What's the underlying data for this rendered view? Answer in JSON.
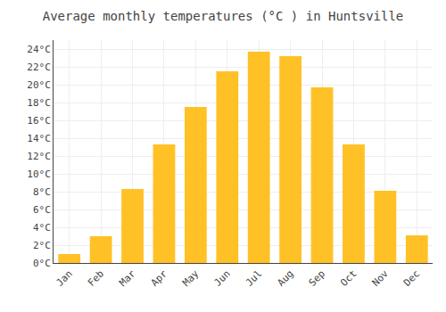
{
  "chart_data": {
    "type": "bar",
    "title": "Average monthly temperatures (°C ) in Huntsville",
    "categories": [
      "Jan",
      "Feb",
      "Mar",
      "Apr",
      "May",
      "Jun",
      "Jul",
      "Aug",
      "Sep",
      "Oct",
      "Nov",
      "Dec"
    ],
    "values": [
      1,
      3,
      8.3,
      13.3,
      17.5,
      21.5,
      23.7,
      23.2,
      19.7,
      13.3,
      8.1,
      3.1
    ],
    "color": "#FFC125",
    "ylim": [
      0,
      25
    ],
    "yticks": [
      {
        "value": 0,
        "label": "0°C"
      },
      {
        "value": 2,
        "label": "2°C"
      },
      {
        "value": 4,
        "label": "4°C"
      },
      {
        "value": 6,
        "label": "6°C"
      },
      {
        "value": 8,
        "label": "8°C"
      },
      {
        "value": 10,
        "label": "10°C"
      },
      {
        "value": 12,
        "label": "12°C"
      },
      {
        "value": 14,
        "label": "14°C"
      },
      {
        "value": 16,
        "label": "16°C"
      },
      {
        "value": 18,
        "label": "18°C"
      },
      {
        "value": 20,
        "label": "20°C"
      },
      {
        "value": 22,
        "label": "22°C"
      },
      {
        "value": 24,
        "label": "24°C"
      }
    ],
    "grid": true
  }
}
